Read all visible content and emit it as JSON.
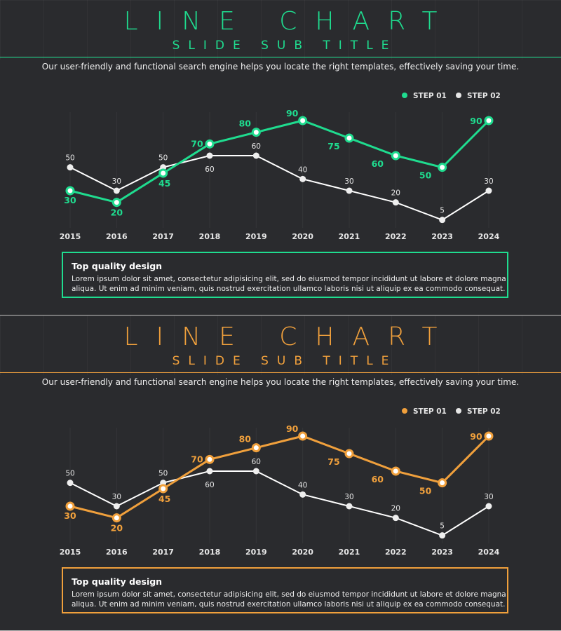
{
  "slides": [
    {
      "title": "LINE CHART",
      "subtitle": "SLIDE SUB TITLE",
      "accent": "#1fdc8f",
      "description": "Our user-friendly and functional search engine helps you locate the right templates, effectively saving your time.",
      "box": {
        "heading": "Top quality design",
        "text": "Lorem ipsum dolor sit amet, consectetur adipisicing elit, sed do eiusmod tempor incididunt ut labore et dolore magna aliqua. Ut enim ad minim veniam, quis nostrud exercitation ullamco laboris nisi ut aliquip ex ea commodo consequat."
      }
    },
    {
      "title": "LINE CHART",
      "subtitle": "SLIDE SUB TITLE",
      "accent": "#f0a03c",
      "description": "Our user-friendly and functional search engine helps you locate the right templates, effectively saving your time.",
      "box": {
        "heading": "Top quality design",
        "text": "Lorem ipsum dolor sit amet, consectetur adipisicing elit, sed do eiusmod tempor incididunt ut labore et dolore magna aliqua. Ut enim ad minim veniam, quis nostrud exercitation ullamco laboris nisi ut aliquip ex ea commodo consequat."
      }
    }
  ],
  "chart_data": [
    {
      "type": "line",
      "categories": [
        "2015",
        "2016",
        "2017",
        "2018",
        "2019",
        "2020",
        "2021",
        "2022",
        "2023",
        "2024"
      ],
      "series": [
        {
          "name": "STEP 01",
          "color": "#1fdc8f",
          "values": [
            30,
            20,
            45,
            70,
            80,
            90,
            75,
            60,
            50,
            90
          ]
        },
        {
          "name": "STEP 02",
          "color": "#ffffff",
          "values": [
            50,
            30,
            50,
            60,
            60,
            40,
            30,
            20,
            5,
            30
          ]
        }
      ],
      "legend": "top-right",
      "grid": false
    },
    {
      "type": "line",
      "categories": [
        "2015",
        "2016",
        "2017",
        "2018",
        "2019",
        "2020",
        "2021",
        "2022",
        "2023",
        "2024"
      ],
      "series": [
        {
          "name": "STEP 01",
          "color": "#f0a03c",
          "values": [
            30,
            20,
            45,
            70,
            80,
            90,
            75,
            60,
            50,
            90
          ]
        },
        {
          "name": "STEP 02",
          "color": "#ffffff",
          "values": [
            50,
            30,
            50,
            60,
            60,
            40,
            30,
            20,
            5,
            30
          ]
        }
      ],
      "legend": "top-right",
      "grid": false
    }
  ]
}
